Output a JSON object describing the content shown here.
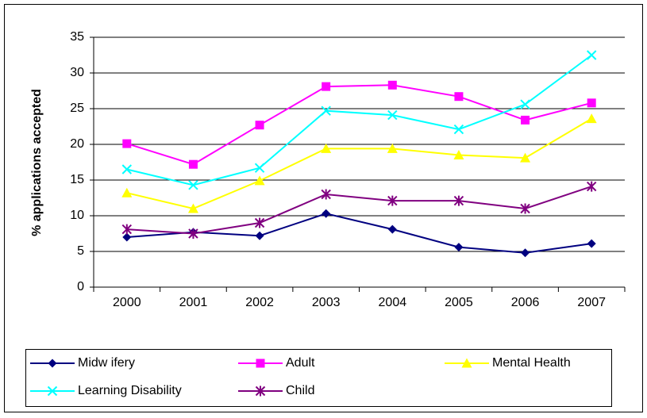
{
  "chart_data": {
    "type": "line",
    "y_label": "% applications accepted",
    "categories": [
      "2000",
      "2001",
      "2002",
      "2003",
      "2004",
      "2005",
      "2006",
      "2007"
    ],
    "ylim": [
      0,
      35
    ],
    "yticks": [
      0,
      5,
      10,
      15,
      20,
      25,
      30,
      35
    ],
    "grid": true,
    "legend": "bottom",
    "series": [
      {
        "name": "Midw ifery",
        "color": "#000080",
        "marker": "diamond",
        "values": [
          7,
          7.7,
          7.2,
          10.3,
          8.1,
          5.6,
          4.8,
          6.1
        ]
      },
      {
        "name": "Adult",
        "color": "#ff00ff",
        "marker": "square",
        "values": [
          20.1,
          17.2,
          22.7,
          28.1,
          28.3,
          26.7,
          23.4,
          25.8
        ]
      },
      {
        "name": "Mental Health",
        "color": "#ffff00",
        "marker": "triangle",
        "values": [
          13.2,
          11,
          14.9,
          19.4,
          19.4,
          18.5,
          18.1,
          23.6
        ]
      },
      {
        "name": "Learning Disability",
        "color": "#00ffff",
        "marker": "cross",
        "values": [
          16.5,
          14.3,
          16.7,
          24.7,
          24.1,
          22.1,
          25.6,
          32.5
        ]
      },
      {
        "name": "Child",
        "color": "#800080",
        "marker": "star",
        "values": [
          8.1,
          7.5,
          9,
          13,
          12.1,
          12.1,
          11,
          14.1
        ]
      }
    ]
  }
}
